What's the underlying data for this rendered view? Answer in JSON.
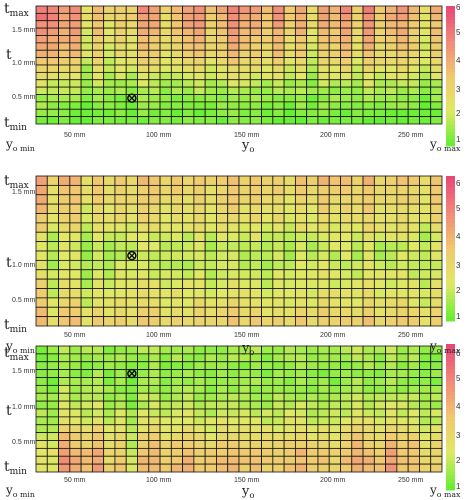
{
  "labels": {
    "t_max": "t",
    "t_max_sub": "max",
    "t": "t",
    "t_min": "t",
    "t_min_sub": "min",
    "y_min": "y",
    "y_min_sub": "o min",
    "y_center": "y",
    "y_center_sub": "o",
    "y_max": "y",
    "y_max_sub": "o max"
  },
  "chart_data": [
    {
      "type": "heatmap",
      "y_ticks": [
        "1.5 mm",
        "1.0 mm",
        "0.5 mm"
      ],
      "x_ticks": [
        "50 mm",
        "100 mm",
        "150 mm",
        "200 mm",
        "250 mm"
      ],
      "x_tick_values": [
        50,
        100,
        150,
        200,
        250
      ],
      "y_tick_values": [
        1.5,
        1.0,
        0.5
      ],
      "colorbar_ticks": [
        "6",
        "5",
        "4",
        "3",
        "2",
        "1"
      ],
      "colorbar_range": [
        1,
        6
      ],
      "colorscale": [
        "#66ee33",
        "#e0e866",
        "#f0c870",
        "#f08a78",
        "#e84878"
      ],
      "grid": {
        "rows": 16,
        "cols": 36
      },
      "marker": {
        "symbol": "circle-cross",
        "col": 8,
        "row": 12
      },
      "column_profile": [
        5.2,
        5.0,
        4.6,
        4.8,
        2.6,
        4.0,
        2.8,
        3.4,
        3.2,
        4.6,
        4.2,
        3.0,
        3.8,
        4.4,
        4.6,
        3.6,
        4.0,
        4.8,
        4.4,
        4.2,
        3.8,
        4.6,
        3.4,
        4.2,
        2.8,
        4.4,
        4.0,
        4.6,
        3.2,
        4.8,
        3.6,
        4.0,
        4.4,
        3.8,
        2.6,
        4.0
      ],
      "row_profile": [
        1.0,
        0.95,
        0.9,
        0.85,
        0.8,
        0.75,
        0.7,
        0.62,
        0.5,
        0.4,
        0.3,
        0.22,
        0.16,
        0.12,
        0.08,
        0.05
      ]
    },
    {
      "type": "heatmap",
      "y_ticks": [
        "1.5 mm",
        "1.0 mm",
        "0.5 mm"
      ],
      "x_ticks": [
        "50 mm",
        "100 mm",
        "150 mm",
        "200 mm",
        "250 mm"
      ],
      "x_tick_values": [
        50,
        100,
        150,
        200,
        250
      ],
      "y_tick_values": [
        1.5,
        1.0,
        0.5
      ],
      "colorbar_ticks": [
        "6",
        "5",
        "4",
        "3",
        "2",
        "1"
      ],
      "colorbar_range": [
        1,
        6
      ],
      "colorscale": [
        "#66ee33",
        "#e0e866",
        "#f0c870",
        "#f08a78",
        "#e84878"
      ],
      "grid": {
        "rows": 16,
        "cols": 36
      },
      "marker": {
        "symbol": "circle-x",
        "col": 8,
        "row": 8
      },
      "column_profile": [
        4.8,
        3.0,
        4.4,
        4.2,
        2.8,
        3.8,
        3.2,
        3.6,
        3.4,
        4.0,
        3.8,
        3.2,
        3.6,
        3.4,
        3.8,
        3.2,
        3.6,
        4.0,
        3.4,
        3.8,
        3.2,
        3.6,
        3.0,
        3.8,
        3.2,
        4.0,
        3.6,
        3.8,
        3.4,
        4.2,
        3.4,
        3.6,
        3.8,
        3.6,
        3.0,
        4.0
      ],
      "row_profile": [
        0.9,
        0.8,
        0.75,
        0.7,
        0.65,
        0.55,
        0.45,
        0.4,
        0.38,
        0.4,
        0.45,
        0.5,
        0.55,
        0.6,
        0.7,
        0.8
      ]
    },
    {
      "type": "heatmap",
      "y_ticks": [
        "1.5 mm",
        "1.0 mm",
        "0.5 mm"
      ],
      "x_ticks": [
        "50 mm",
        "100 mm",
        "150 mm",
        "200 mm",
        "250 mm"
      ],
      "x_tick_values": [
        50,
        100,
        150,
        200,
        250
      ],
      "y_tick_values": [
        1.5,
        1.0,
        0.5
      ],
      "colorbar_ticks": [
        "6",
        "5",
        "4",
        "3",
        "2",
        "1"
      ],
      "colorbar_range": [
        1,
        6
      ],
      "colorscale": [
        "#66ee33",
        "#e0e866",
        "#f0c870",
        "#f08a78",
        "#e84878"
      ],
      "grid": {
        "rows": 16,
        "cols": 36
      },
      "marker": {
        "symbol": "circle-x",
        "col": 8,
        "row": 3
      },
      "column_profile": [
        2.6,
        2.4,
        4.6,
        4.0,
        3.6,
        4.2,
        3.0,
        3.4,
        2.2,
        3.8,
        4.0,
        3.2,
        3.6,
        3.8,
        3.4,
        3.2,
        3.6,
        3.8,
        3.4,
        3.6,
        3.2,
        3.4,
        3.6,
        3.8,
        3.2,
        3.4,
        3.0,
        3.6,
        4.2,
        3.8,
        3.4,
        4.4,
        3.6,
        3.8,
        3.0,
        3.2
      ],
      "row_profile": [
        0.25,
        0.22,
        0.2,
        0.2,
        0.22,
        0.25,
        0.3,
        0.35,
        0.42,
        0.5,
        0.6,
        0.72,
        0.85,
        0.95,
        1.0,
        1.0
      ]
    }
  ]
}
